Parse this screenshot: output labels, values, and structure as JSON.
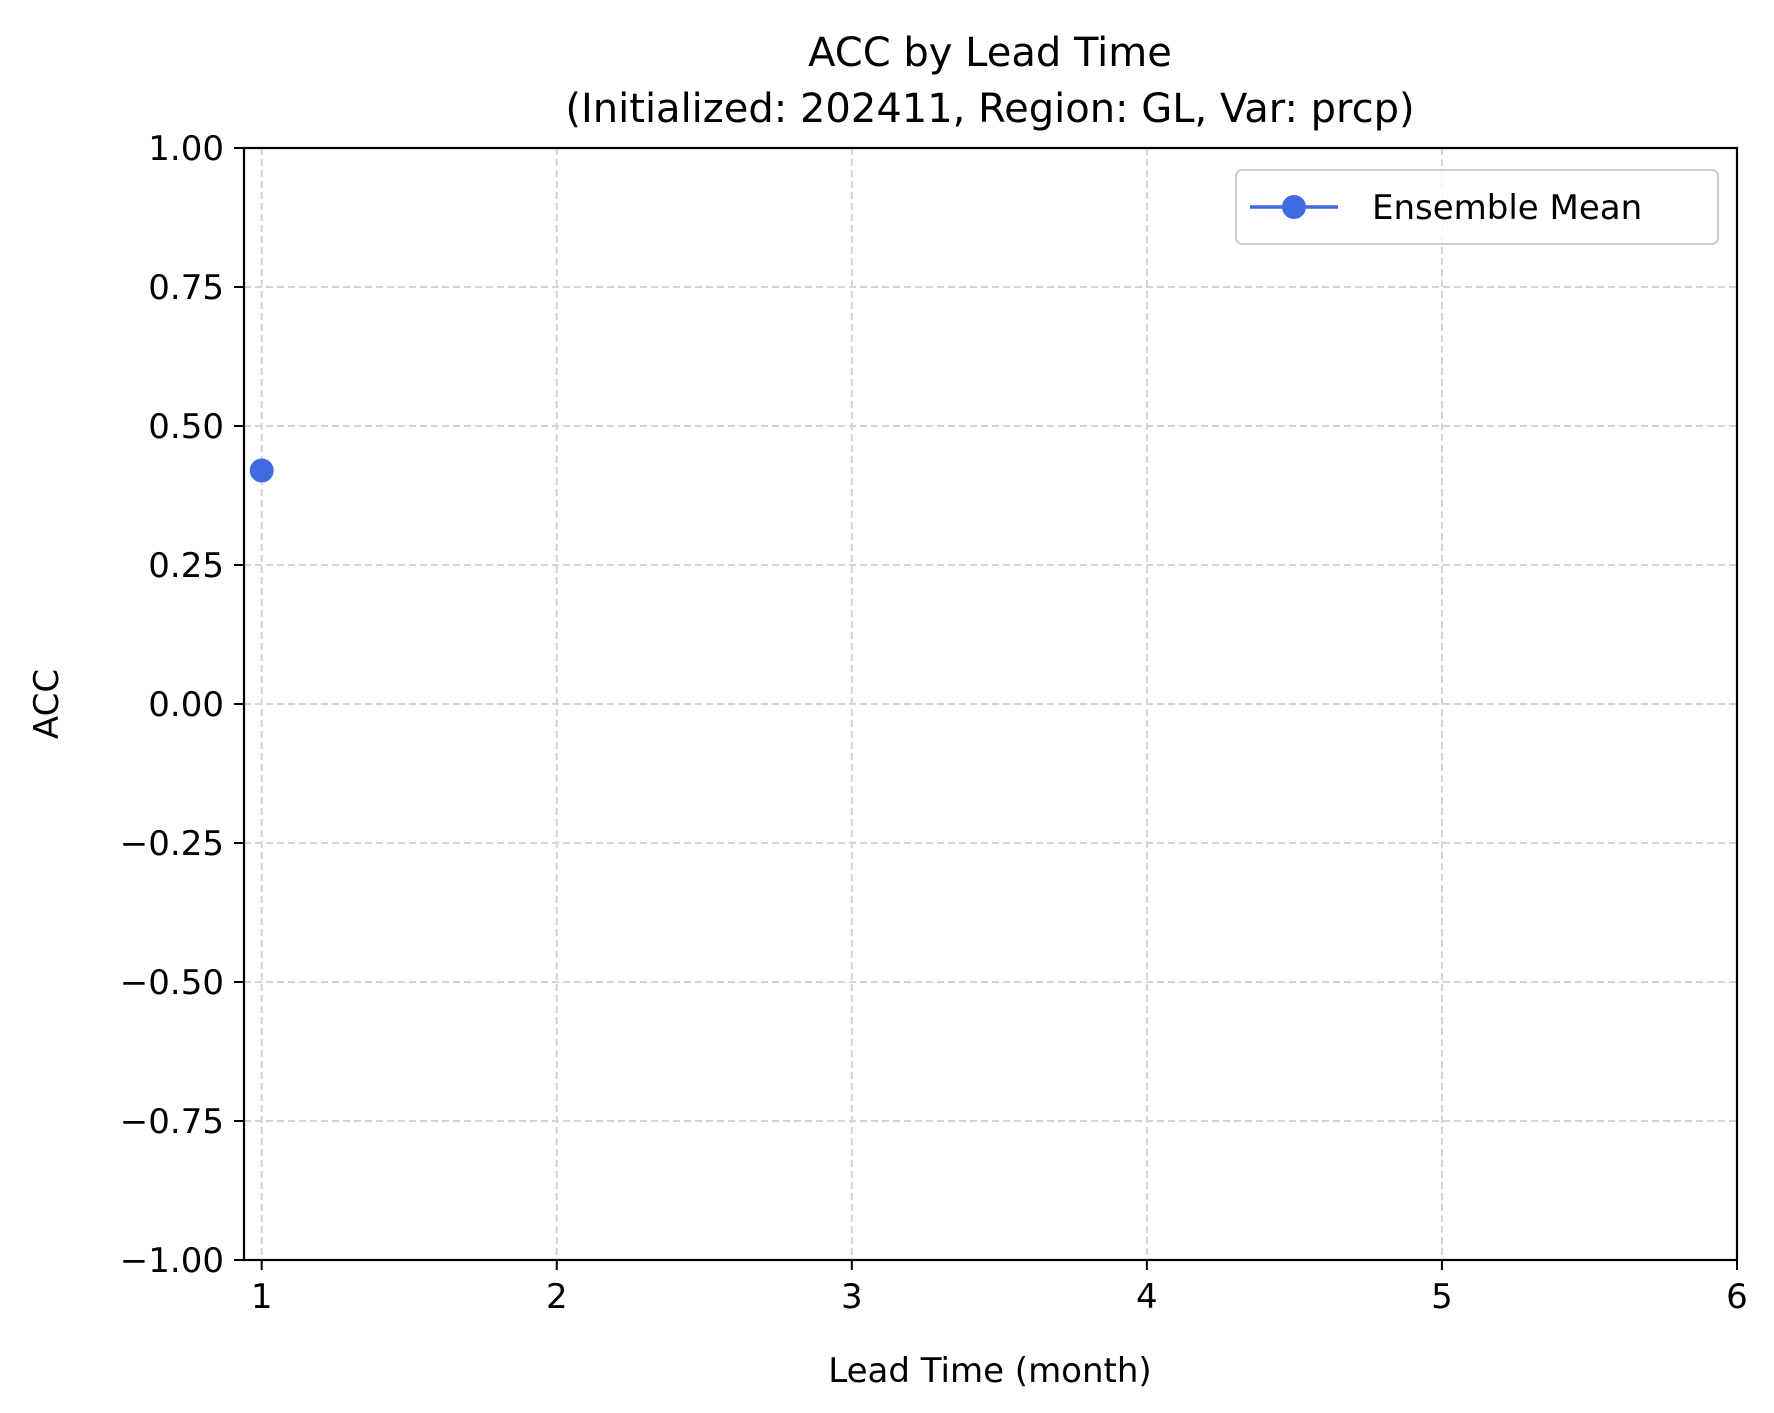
{
  "chart_data": {
    "type": "line",
    "title": "ACC by Lead Time",
    "subtitle": "(Initialized: 202411, Region: GL, Var: prcp)",
    "xlabel": "Lead Time (month)",
    "ylabel": "ACC",
    "xlim": [
      0.94,
      6
    ],
    "ylim": [
      -1.0,
      1.0
    ],
    "x_ticks": [
      1,
      2,
      3,
      4,
      5,
      6
    ],
    "x_tick_labels": [
      "1",
      "2",
      "3",
      "4",
      "5",
      "6"
    ],
    "y_ticks": [
      -1.0,
      -0.75,
      -0.5,
      -0.25,
      0.0,
      0.25,
      0.5,
      0.75,
      1.0
    ],
    "y_tick_labels": [
      "−1.00",
      "−0.75",
      "−0.50",
      "−0.25",
      "0.00",
      "0.25",
      "0.50",
      "0.75",
      "1.00"
    ],
    "grid": true,
    "grid_style": "dashed",
    "legend_position": "top-right",
    "series": [
      {
        "name": "Ensemble Mean",
        "color": "#4169e1",
        "marker": "circle",
        "x": [
          1
        ],
        "y": [
          0.42
        ]
      }
    ]
  }
}
